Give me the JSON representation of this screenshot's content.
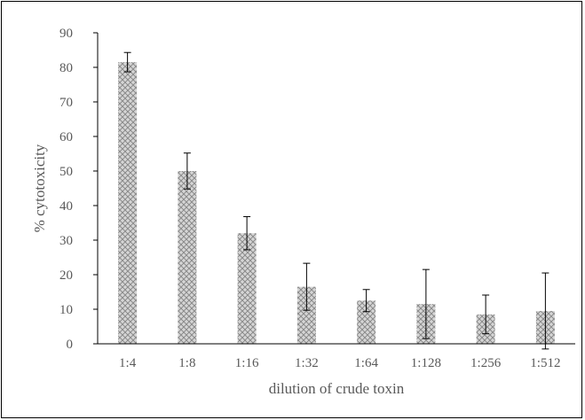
{
  "chart_data": {
    "type": "bar",
    "title": "",
    "xlabel": "dilution of crude toxin",
    "ylabel": "% cytotoxicity",
    "ylim": [
      0,
      90
    ],
    "yticks": [
      0,
      10,
      20,
      30,
      40,
      50,
      60,
      70,
      80,
      90
    ],
    "categories": [
      "1:4",
      "1:8",
      "1:16",
      "1:32",
      "1:64",
      "1:128",
      "1:256",
      "1:512"
    ],
    "values": [
      81.5,
      50,
      32,
      16.5,
      12.5,
      11.5,
      8.5,
      9.5
    ],
    "error_bars": [
      2.8,
      5.2,
      4.8,
      6.8,
      3.2,
      10,
      5.6,
      11
    ],
    "grid": false,
    "legend": "none",
    "colors": {
      "bar_fill": "#c8c8c8",
      "bar_pattern": "#8c8c8c",
      "axis": "#000000",
      "text": "#595959"
    }
  }
}
